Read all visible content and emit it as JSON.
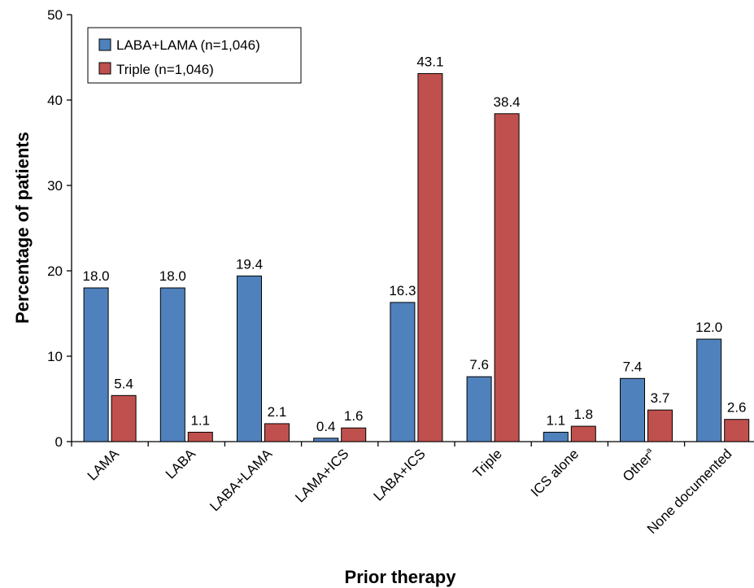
{
  "chart_data": {
    "type": "bar",
    "title": "",
    "xlabel": "Prior therapy",
    "ylabel": "Percentage of patients",
    "ylim": [
      0,
      50
    ],
    "yticks": [
      0,
      10,
      20,
      30,
      40,
      50
    ],
    "grid": false,
    "legend_position": "top-left",
    "categories": [
      "LAMA",
      "LABA",
      "LABA+LAMA",
      "LAMA+ICS",
      "LABA+ICS",
      "Triple",
      "ICS alone",
      "Other",
      "None documented"
    ],
    "category_superscripts": [
      "",
      "",
      "",
      "",
      "",
      "",
      "",
      "a",
      ""
    ],
    "series": [
      {
        "name": "LABA+LAMA (n=1,046)",
        "color": "#4f81bd",
        "values": [
          18.0,
          18.0,
          19.4,
          0.4,
          16.3,
          7.6,
          1.1,
          7.4,
          12.0
        ],
        "labels": [
          "18.0",
          "18.0",
          "19.4",
          "0.4",
          "16.3",
          "7.6",
          "1.1",
          "7.4",
          "12.0"
        ]
      },
      {
        "name": "Triple (n=1,046)",
        "color": "#c0504d",
        "values": [
          5.4,
          1.1,
          2.1,
          1.6,
          43.1,
          38.4,
          1.8,
          3.7,
          2.6
        ],
        "labels": [
          "5.4",
          "1.1",
          "2.1",
          "1.6",
          "43.1",
          "38.4",
          "1.8",
          "3.7",
          "2.6"
        ]
      }
    ]
  }
}
